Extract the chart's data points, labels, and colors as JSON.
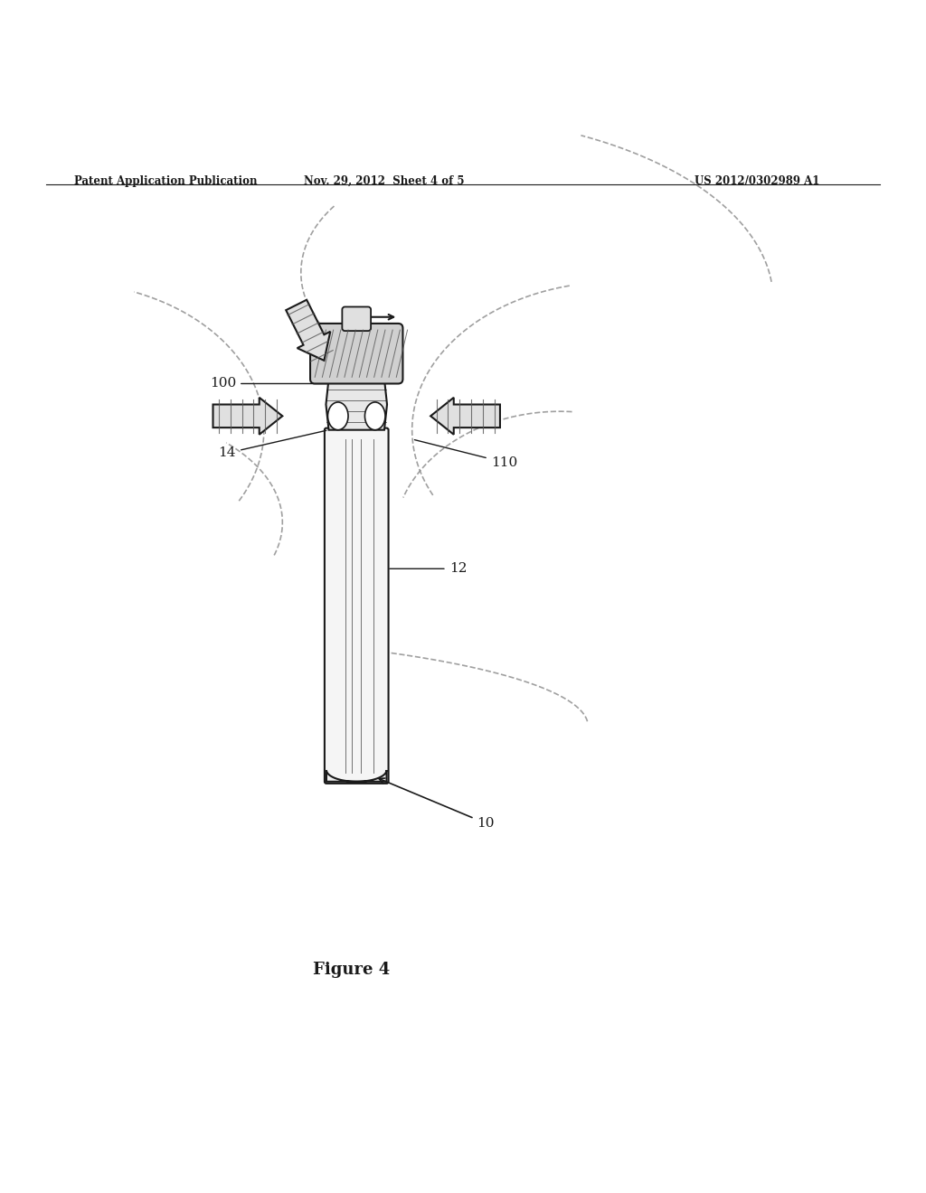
{
  "bg_color": "#ffffff",
  "header_left": "Patent Application Publication",
  "header_center": "Nov. 29, 2012  Sheet 4 of 5",
  "header_right": "US 2012/0302989 A1",
  "figure_label": "Figure 4",
  "line_color": "#1a1a1a",
  "hatch_color": "#555555",
  "dashed_color": "#888888"
}
